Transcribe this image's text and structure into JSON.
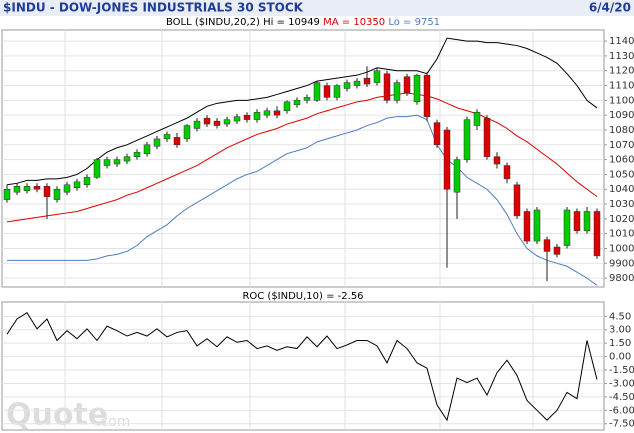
{
  "header": {
    "title": "$INDU - DOW-JONES INDUSTRIALS 30 STOCK",
    "date": "6/4/20"
  },
  "watermark": {
    "main": "Quote",
    "suffix": ".com"
  },
  "chart_data": [
    {
      "type": "candlestick",
      "title": "BOLL ($INDU,20,2)",
      "up_color": "#00cc00",
      "down_color": "#dd0000",
      "grid": true,
      "ylim": [
        9740,
        11475
      ],
      "yticks": [
        {
          "value": 11400,
          "label": "1140"
        },
        {
          "value": 11300,
          "label": "1130"
        },
        {
          "value": 11200,
          "label": "1120"
        },
        {
          "value": 11100,
          "label": "1110"
        },
        {
          "value": 11000,
          "label": "1100"
        },
        {
          "value": 10900,
          "label": "1090"
        },
        {
          "value": 10800,
          "label": "1080"
        },
        {
          "value": 10700,
          "label": "1070"
        },
        {
          "value": 10600,
          "label": "1060"
        },
        {
          "value": 10500,
          "label": "1050"
        },
        {
          "value": 10400,
          "label": "1040"
        },
        {
          "value": 10300,
          "label": "1030"
        },
        {
          "value": 10200,
          "label": "1020"
        },
        {
          "value": 10100,
          "label": "1010"
        },
        {
          "value": 10000,
          "label": "1000"
        },
        9900,
        9800
      ],
      "open": [
        10330,
        10380,
        10390,
        10420,
        10420,
        10330,
        10380,
        10410,
        10430,
        10480,
        10560,
        10570,
        10590,
        10620,
        10640,
        10690,
        10740,
        10750,
        10740,
        10810,
        10880,
        10860,
        10840,
        10860,
        10900,
        10870,
        10900,
        10930,
        10930,
        10970,
        11000,
        11000,
        11100,
        11020,
        11080,
        11100,
        11150,
        11120,
        11180,
        11000,
        11160,
        10990,
        11170,
        10850,
        10800,
        10380,
        10600,
        10830,
        10880,
        10620,
        10560,
        10430,
        10250,
        10050,
        10060,
        10010,
        10020,
        10250,
        10120,
        10250
      ],
      "high": [
        10430,
        10440,
        10440,
        10440,
        10440,
        10420,
        10450,
        10470,
        10500,
        10610,
        10620,
        10620,
        10640,
        10670,
        10720,
        10760,
        10790,
        10780,
        10840,
        10880,
        10900,
        10880,
        10890,
        10910,
        10920,
        10940,
        10950,
        10960,
        11000,
        11020,
        11040,
        11130,
        11120,
        11110,
        11140,
        11150,
        11230,
        11220,
        11200,
        11140,
        11180,
        11180,
        11190,
        10870,
        10820,
        10620,
        10890,
        10940,
        10900,
        10650,
        10580,
        10450,
        10270,
        10280,
        10080,
        10030,
        10280,
        10270,
        10280,
        10270
      ],
      "low": [
        10310,
        10360,
        10370,
        10380,
        10200,
        10310,
        10360,
        10390,
        10410,
        10470,
        10540,
        10550,
        10570,
        10600,
        10620,
        10670,
        10720,
        10680,
        10720,
        10790,
        10820,
        10810,
        10820,
        10840,
        10850,
        10850,
        10880,
        10880,
        10910,
        10950,
        10980,
        10990,
        11000,
        11000,
        11060,
        11080,
        11090,
        11100,
        10980,
        10980,
        11030,
        10970,
        10860,
        10680,
        9870,
        10200,
        10580,
        10800,
        10600,
        10540,
        10440,
        10200,
        10030,
        10030,
        9780,
        9940,
        10000,
        10100,
        10100,
        9930
      ],
      "close": [
        10400,
        10420,
        10420,
        10400,
        10350,
        10400,
        10430,
        10450,
        10480,
        10600,
        10600,
        10600,
        10620,
        10650,
        10700,
        10740,
        10770,
        10700,
        10830,
        10860,
        10840,
        10830,
        10870,
        10890,
        10870,
        10920,
        10930,
        10900,
        10990,
        11000,
        11020,
        11120,
        11020,
        11100,
        11120,
        11130,
        11110,
        11200,
        11000,
        11120,
        11050,
        11170,
        10890,
        10700,
        10400,
        10600,
        10870,
        10920,
        10620,
        10570,
        10470,
        10220,
        10050,
        10260,
        9980,
        9960,
        10260,
        10120,
        10250,
        9950
      ],
      "series": [
        {
          "name": "Hi = 10949",
          "color": "#000000",
          "values": [
            10430,
            10440,
            10460,
            10460,
            10470,
            10470,
            10480,
            10500,
            10540,
            10600,
            10650,
            10680,
            10700,
            10730,
            10760,
            10790,
            10820,
            10850,
            10880,
            10920,
            10960,
            10980,
            10990,
            11000,
            11000,
            11010,
            11020,
            11040,
            11060,
            11080,
            11100,
            11130,
            11140,
            11150,
            11160,
            11170,
            11190,
            11220,
            11210,
            11200,
            11200,
            11200,
            11180,
            11280,
            11420,
            11410,
            11400,
            11400,
            11390,
            11390,
            11380,
            11370,
            11350,
            11320,
            11290,
            11250,
            11180,
            11100,
            11000,
            10949
          ]
        },
        {
          "name": "MA = 10350",
          "color": "#dd0000",
          "values": [
            10180,
            10190,
            10200,
            10210,
            10220,
            10230,
            10240,
            10250,
            10270,
            10290,
            10310,
            10330,
            10360,
            10380,
            10410,
            10440,
            10470,
            10500,
            10530,
            10560,
            10600,
            10640,
            10680,
            10710,
            10740,
            10770,
            10790,
            10810,
            10840,
            10860,
            10880,
            10910,
            10930,
            10950,
            10970,
            10990,
            11000,
            11020,
            11030,
            11040,
            11050,
            11040,
            11030,
            11010,
            10980,
            10950,
            10930,
            10910,
            10880,
            10850,
            10810,
            10760,
            10720,
            10670,
            10620,
            10570,
            10510,
            10450,
            10400,
            10350
          ]
        },
        {
          "name": "Lo = 9751",
          "color": "#4f7cc0",
          "values": [
            9920,
            9920,
            9920,
            9920,
            9920,
            9920,
            9920,
            9920,
            9920,
            9930,
            9950,
            9960,
            9980,
            10020,
            10080,
            10120,
            10160,
            10220,
            10270,
            10310,
            10350,
            10390,
            10430,
            10470,
            10500,
            10520,
            10560,
            10600,
            10640,
            10660,
            10680,
            10720,
            10740,
            10760,
            10780,
            10800,
            10830,
            10850,
            10880,
            10890,
            10890,
            10900,
            10870,
            10700,
            10600,
            10550,
            10480,
            10440,
            10400,
            10330,
            10230,
            10100,
            10000,
            9950,
            9920,
            9900,
            9880,
            9840,
            9800,
            9751
          ]
        }
      ]
    },
    {
      "type": "line",
      "title": "ROC ($INDU,10) = -2.56",
      "grid": true,
      "ylim": [
        -8.2,
        6.1
      ],
      "yticks": [
        {
          "value": 4.5,
          "label": "4.50"
        },
        {
          "value": 3,
          "label": "3.00"
        },
        {
          "value": 1.5,
          "label": "1.50"
        },
        {
          "value": 0,
          "label": "0.00"
        },
        {
          "value": -1.5,
          "label": "-1.50"
        },
        {
          "value": -3,
          "label": "-3.00"
        },
        {
          "value": -4.5,
          "label": "-4.50"
        },
        {
          "value": -6,
          "label": "-6.00"
        },
        {
          "value": -7.5,
          "label": "-7.50"
        }
      ],
      "series": [
        {
          "color": "#000000",
          "values": [
            2.5,
            4.2,
            4.9,
            3.1,
            4.2,
            1.8,
            2.9,
            2.0,
            3.1,
            1.8,
            3.4,
            2.9,
            2.3,
            2.7,
            2.3,
            3.1,
            2.2,
            2.7,
            2.9,
            1.2,
            2.0,
            1.1,
            2.2,
            1.6,
            1.8,
            0.9,
            1.2,
            0.7,
            1.1,
            0.9,
            2.2,
            1.1,
            2.3,
            0.9,
            1.3,
            1.8,
            1.8,
            1.2,
            -0.7,
            1.8,
            0.9,
            -0.7,
            -1.3,
            -5.4,
            -7.1,
            -2.4,
            -2.9,
            -2.4,
            -4.3,
            -1.8,
            -0.4,
            -2.1,
            -4.9,
            -6.0,
            -7.1,
            -6.0,
            -4.0,
            -4.7,
            1.8,
            -2.56
          ]
        }
      ]
    }
  ]
}
